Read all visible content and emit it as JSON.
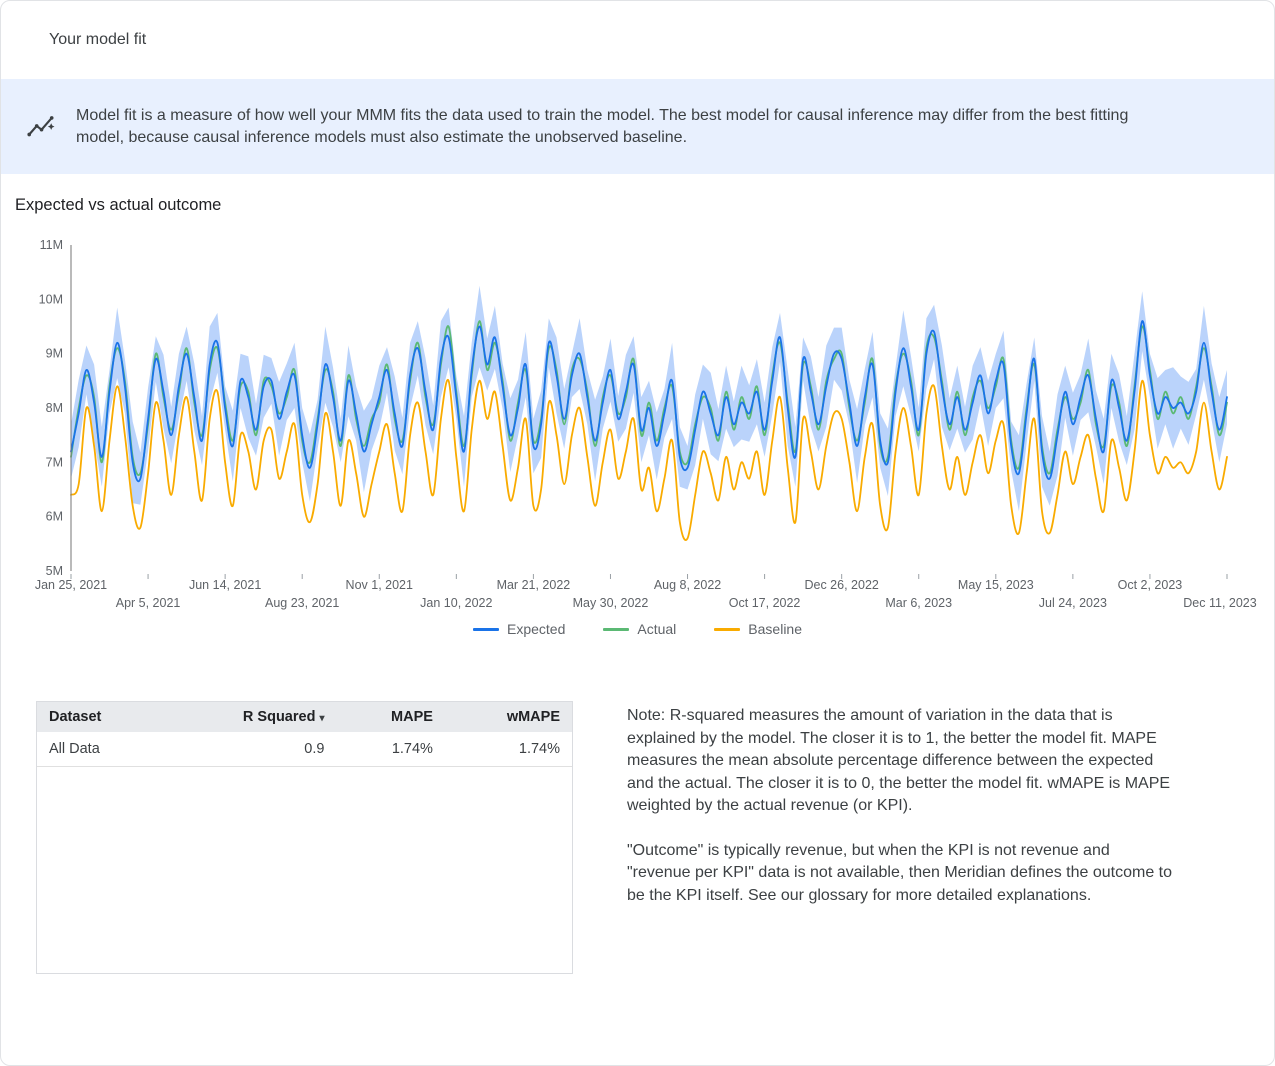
{
  "page": {
    "title": "Your model fit"
  },
  "banner": {
    "icon": "insights-icon",
    "text": "Model fit is a measure of how well your MMM fits the data used to train the model. The best model for causal inference may differ from the best fitting model, because causal inference models must also estimate the unobserved baseline."
  },
  "colors": {
    "banner_bg": "#e8f0fe",
    "expected": "#1a73e8",
    "actual": "#5bb974",
    "baseline": "#f9ab00",
    "band": "#aecbfa",
    "table_header_bg": "#e8eaed"
  },
  "chart_data": {
    "type": "line",
    "title": "Expected vs actual outcome",
    "xlabel": "",
    "ylabel": "",
    "ylim": [
      5,
      11
    ],
    "y_ticks": [
      "5M",
      "6M",
      "7M",
      "8M",
      "9M",
      "10M",
      "11M"
    ],
    "grid": false,
    "legend_position": "bottom",
    "tick_interval_weeks": 10,
    "x_tick_labels": [
      "Jan 25, 2021",
      "Apr 5, 2021",
      "Jun 14, 2021",
      "Aug 23, 2021",
      "Nov 1, 2021",
      "Jan 10, 2022",
      "Mar 21, 2022",
      "May 30, 2022",
      "Aug 8, 2022",
      "Oct 17, 2022",
      "Dec 26, 2022",
      "Mar 6, 2023",
      "May 15, 2023",
      "Jul 24, 2023",
      "Oct 2, 2023",
      "Dec 11, 2023"
    ],
    "band": {
      "around_series": "Expected",
      "color": "#aecbfa",
      "halfwidths": [
        0.5,
        0.62,
        0.45,
        0.7,
        0.55,
        0.4,
        0.65,
        0.5,
        0.75,
        0.48,
        0.58,
        0.42,
        0.68,
        0.52,
        0.6,
        0.5,
        0.62,
        0.45,
        0.7,
        0.55,
        0.4,
        0.65,
        0.5,
        0.75,
        0.48,
        0.58,
        0.42,
        0.68,
        0.52,
        0.6,
        0.5,
        0.62,
        0.45,
        0.7,
        0.55,
        0.4,
        0.65,
        0.5,
        0.75,
        0.48,
        0.58,
        0.42,
        0.68,
        0.52,
        0.6,
        0.5,
        0.62,
        0.45,
        0.7,
        0.55,
        0.4,
        0.65,
        0.5,
        0.75,
        0.48,
        0.58,
        0.42,
        0.68,
        0.52,
        0.6,
        0.5,
        0.62,
        0.45,
        0.7,
        0.55,
        0.4,
        0.65,
        0.5,
        0.75,
        0.48,
        0.58,
        0.42,
        0.68,
        0.52,
        0.6,
        0.5,
        0.62,
        0.45,
        0.7,
        0.55,
        0.4,
        0.65,
        0.5,
        0.75,
        0.48,
        0.58,
        0.42,
        0.68,
        0.52,
        0.6,
        0.5,
        0.62,
        0.45,
        0.7,
        0.55,
        0.4,
        0.65,
        0.5,
        0.75,
        0.48,
        0.58,
        0.42,
        0.68,
        0.52,
        0.6,
        0.5,
        0.62,
        0.45,
        0.7,
        0.55,
        0.4,
        0.65,
        0.5,
        0.75,
        0.48,
        0.58,
        0.42,
        0.68,
        0.52,
        0.6,
        0.5,
        0.62,
        0.45,
        0.7,
        0.55,
        0.4,
        0.65,
        0.5,
        0.75,
        0.48,
        0.58,
        0.42,
        0.68,
        0.52,
        0.6,
        0.5,
        0.62,
        0.45,
        0.7,
        0.55,
        0.4,
        0.65,
        0.5,
        0.75,
        0.48,
        0.58,
        0.42,
        0.68,
        0.52,
        0.6,
        0.5
      ]
    },
    "series": [
      {
        "name": "Expected",
        "color": "#1a73e8",
        "values": [
          7.2,
          7.9,
          8.7,
          8.1,
          7.1,
          8.3,
          9.2,
          8.4,
          7.0,
          6.7,
          7.8,
          8.9,
          8.3,
          7.5,
          8.4,
          9.0,
          8.2,
          7.4,
          8.8,
          9.2,
          8.0,
          7.3,
          8.5,
          8.2,
          7.6,
          8.4,
          8.5,
          7.8,
          8.3,
          8.6,
          7.5,
          6.9,
          7.7,
          8.8,
          8.2,
          7.4,
          8.5,
          7.9,
          7.2,
          7.7,
          8.2,
          8.7,
          7.9,
          7.3,
          8.6,
          9.1,
          8.3,
          7.6,
          8.9,
          9.3,
          8.2,
          7.2,
          8.7,
          9.5,
          8.8,
          9.3,
          8.4,
          7.5,
          8.0,
          8.8,
          7.3,
          7.7,
          9.2,
          8.6,
          7.8,
          8.6,
          9.0,
          8.2,
          7.4,
          8.1,
          8.7,
          7.8,
          8.3,
          8.8,
          7.6,
          8.0,
          7.3,
          7.9,
          8.5,
          7.1,
          6.9,
          7.6,
          8.3,
          7.9,
          7.5,
          8.2,
          7.7,
          8.1,
          7.9,
          8.3,
          7.6,
          8.5,
          9.3,
          8.0,
          7.1,
          8.9,
          8.3,
          7.7,
          8.4,
          9.0,
          8.9,
          8.1,
          7.3,
          8.2,
          8.8,
          7.4,
          7.0,
          8.3,
          9.1,
          8.4,
          7.6,
          9.0,
          9.4,
          8.4,
          7.7,
          8.2,
          7.6,
          8.1,
          8.6,
          7.9,
          8.5,
          8.8,
          7.3,
          6.8,
          7.9,
          8.9,
          7.2,
          6.7,
          7.5,
          8.3,
          7.7,
          8.2,
          8.6,
          7.8,
          7.2,
          8.5,
          8.0,
          7.4,
          8.3,
          9.6,
          8.6,
          7.9,
          8.2,
          8.0,
          8.1,
          7.9,
          8.3,
          9.2,
          8.3,
          7.6,
          8.2
        ]
      },
      {
        "name": "Actual",
        "color": "#5bb974",
        "values": [
          7.1,
          8.0,
          8.6,
          8.2,
          7.0,
          8.4,
          9.1,
          8.5,
          7.1,
          6.8,
          7.7,
          9.0,
          8.2,
          7.6,
          8.3,
          9.1,
          8.1,
          7.5,
          8.7,
          9.1,
          8.1,
          7.4,
          8.4,
          8.3,
          7.5,
          8.5,
          8.4,
          7.9,
          8.2,
          8.7,
          7.4,
          7.0,
          7.8,
          8.7,
          8.3,
          7.3,
          8.6,
          7.8,
          7.3,
          7.8,
          8.1,
          8.8,
          7.8,
          7.4,
          8.5,
          9.2,
          8.2,
          7.7,
          8.8,
          9.5,
          8.3,
          7.3,
          8.6,
          9.6,
          8.7,
          9.2,
          8.5,
          7.4,
          8.1,
          8.7,
          7.4,
          7.8,
          9.1,
          8.7,
          7.7,
          8.7,
          8.9,
          8.3,
          7.3,
          8.2,
          8.6,
          7.9,
          8.2,
          8.9,
          7.5,
          8.1,
          7.4,
          8.0,
          8.4,
          7.2,
          7.0,
          7.7,
          8.2,
          8.0,
          7.4,
          8.3,
          7.6,
          8.2,
          7.8,
          8.4,
          7.5,
          8.6,
          9.2,
          8.1,
          7.2,
          8.8,
          8.4,
          7.6,
          8.5,
          8.9,
          9.0,
          8.0,
          7.4,
          8.1,
          8.9,
          7.3,
          7.1,
          8.4,
          9.0,
          8.5,
          7.5,
          9.1,
          9.3,
          8.5,
          7.6,
          8.3,
          7.5,
          8.2,
          8.5,
          8.0,
          8.4,
          8.9,
          7.4,
          6.9,
          8.0,
          8.8,
          7.3,
          6.8,
          7.6,
          8.2,
          7.8,
          8.1,
          8.7,
          7.7,
          7.3,
          8.4,
          8.1,
          7.3,
          8.4,
          9.5,
          8.7,
          7.8,
          8.3,
          7.9,
          8.2,
          7.8,
          8.4,
          9.1,
          8.4,
          7.5,
          8.1
        ]
      },
      {
        "name": "Baseline",
        "color": "#f9ab00",
        "values": [
          6.4,
          6.6,
          8.0,
          7.3,
          6.1,
          7.4,
          8.4,
          7.5,
          6.2,
          5.8,
          6.8,
          8.1,
          7.4,
          6.4,
          7.5,
          8.2,
          7.2,
          6.3,
          7.8,
          8.3,
          7.0,
          6.2,
          7.5,
          7.2,
          6.5,
          7.4,
          7.6,
          6.7,
          7.2,
          7.7,
          6.4,
          5.9,
          6.6,
          7.9,
          7.2,
          6.2,
          7.4,
          6.8,
          6.0,
          6.6,
          7.2,
          7.7,
          6.8,
          6.1,
          7.5,
          8.1,
          7.2,
          6.4,
          7.8,
          8.5,
          7.1,
          6.1,
          7.6,
          8.5,
          7.8,
          8.3,
          7.3,
          6.3,
          6.9,
          7.8,
          6.2,
          6.5,
          8.1,
          7.5,
          6.6,
          7.5,
          8.0,
          7.1,
          6.2,
          7.0,
          7.6,
          6.7,
          7.2,
          7.8,
          6.5,
          6.9,
          6.1,
          6.7,
          7.4,
          5.9,
          5.6,
          6.4,
          7.2,
          6.8,
          6.3,
          7.1,
          6.5,
          7.0,
          6.7,
          7.2,
          6.4,
          7.4,
          8.2,
          6.9,
          5.9,
          7.8,
          7.2,
          6.5,
          7.3,
          7.9,
          7.8,
          7.0,
          6.1,
          7.1,
          7.7,
          6.2,
          5.8,
          7.2,
          8.0,
          7.3,
          6.4,
          7.9,
          8.4,
          7.3,
          6.5,
          7.1,
          6.4,
          7.0,
          7.5,
          6.8,
          7.4,
          7.7,
          6.2,
          5.7,
          6.8,
          7.8,
          6.1,
          5.7,
          6.4,
          7.2,
          6.6,
          7.1,
          7.5,
          6.7,
          6.1,
          7.4,
          6.9,
          6.3,
          7.2,
          8.5,
          7.5,
          6.8,
          7.1,
          6.9,
          7.0,
          6.8,
          7.2,
          8.1,
          7.2,
          6.5,
          7.1
        ]
      }
    ]
  },
  "table": {
    "columns": [
      {
        "label": "Dataset",
        "align": "left",
        "sortable": false
      },
      {
        "label": "R Squared",
        "align": "right",
        "sortable": true
      },
      {
        "label": "MAPE",
        "align": "right",
        "sortable": false
      },
      {
        "label": "wMAPE",
        "align": "right",
        "sortable": false
      }
    ],
    "rows": [
      [
        "All Data",
        "0.9",
        "1.74%",
        "1.74%"
      ]
    ]
  },
  "notes": {
    "paragraph1": "Note: R-squared measures the amount of variation in the data that is explained by the model. The closer it is to 1, the better the model fit. MAPE measures the mean absolute percentage difference between the expected and the actual. The closer it is to 0, the better the model fit. wMAPE is MAPE weighted by the actual revenue (or KPI).",
    "paragraph2": "\"Outcome\" is typically revenue, but when the KPI is not revenue and \"revenue per KPI\" data is not available, then Meridian defines the outcome to be the KPI itself. See our glossary for more detailed explanations."
  }
}
